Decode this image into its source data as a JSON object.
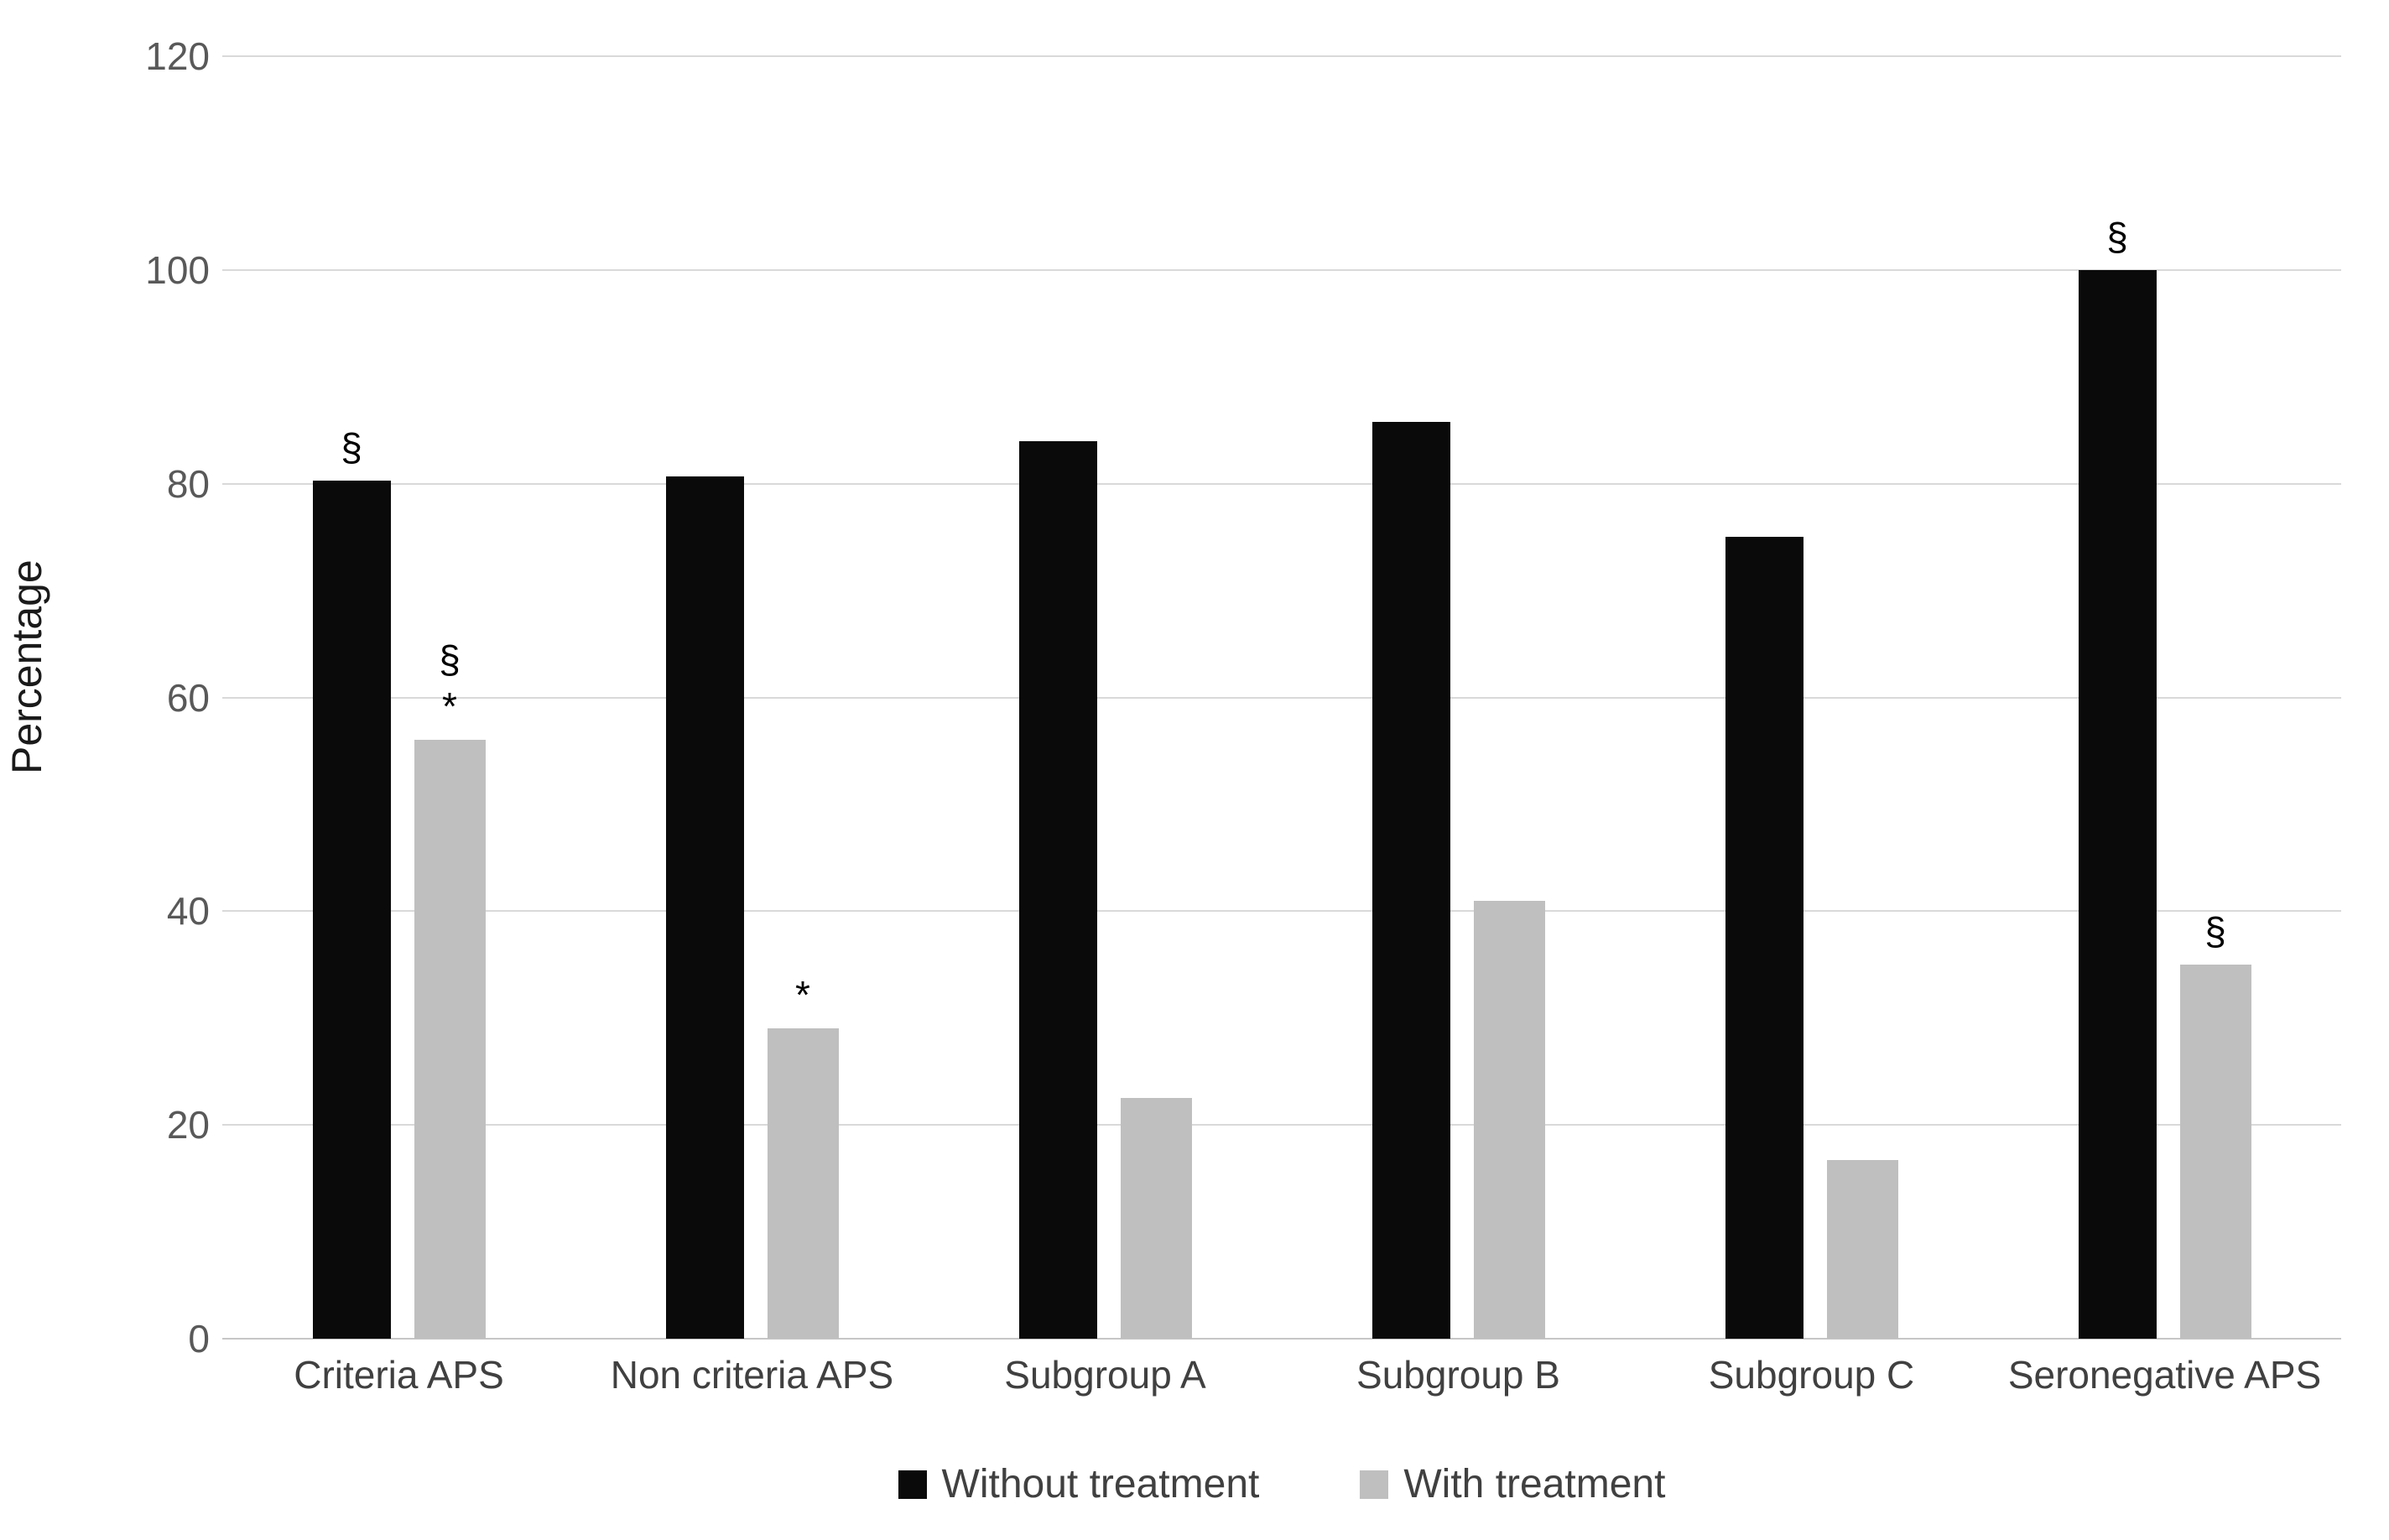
{
  "chart_data": {
    "type": "bar",
    "title": "",
    "xlabel": "",
    "ylabel": "Percentage",
    "ylim": [
      0,
      120
    ],
    "yticks": [
      0,
      20,
      40,
      60,
      80,
      100,
      120
    ],
    "grid": true,
    "grid_color": "#d9d9d9",
    "legend_position": "bottom",
    "categories": [
      "Criteria APS",
      "Non criteria APS",
      "Subgroup A",
      "Subgroup B",
      "Subgroup C",
      "Seronegative APS"
    ],
    "series": [
      {
        "name": "Without treatment",
        "color": "#0a0a0a",
        "values": [
          80.3,
          80.7,
          84,
          85.8,
          75,
          100
        ],
        "annotations": [
          [
            "§"
          ],
          [],
          [],
          [],
          [],
          [
            "§"
          ]
        ]
      },
      {
        "name": "With treatment",
        "color": "#bfbfbf",
        "values": [
          56,
          29,
          22.5,
          41,
          16.7,
          35
        ],
        "annotations": [
          [
            "§",
            "*"
          ],
          [
            "*"
          ],
          [],
          [],
          [],
          [
            "§"
          ]
        ]
      }
    ],
    "annotation_symbols_note": "§ and * shown above selected bars"
  }
}
